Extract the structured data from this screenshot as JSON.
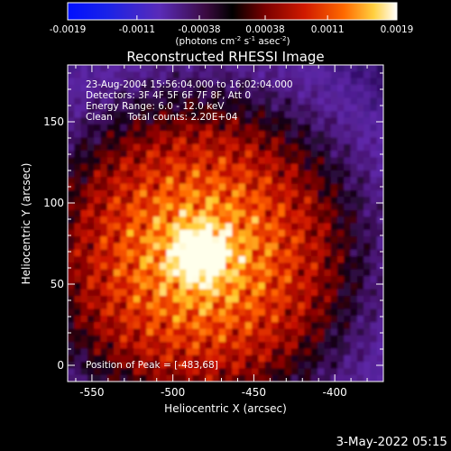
{
  "chart_data": {
    "type": "heatmap",
    "title": "Reconstructed RHESSI Image",
    "xlabel": "Heliocentric X (arcsec)",
    "ylabel": "Heliocentric Y (arcsec)",
    "xlim": [
      -565,
      -370
    ],
    "ylim": [
      -10,
      185
    ],
    "x_ticks": [
      -550,
      -500,
      -450,
      -400
    ],
    "y_ticks": [
      0,
      50,
      100,
      150
    ],
    "colorbar": {
      "ticks": [
        "-0.0019",
        "-0.0011",
        "-0.00038",
        "0.00038",
        "0.0011",
        "0.0019"
      ],
      "tick_values": [
        -0.0019,
        -0.0011,
        -0.00038,
        0.00038,
        0.0011,
        0.0019
      ],
      "range": [
        -0.0019,
        0.0019
      ],
      "unit_text": "(photons cm",
      "unit_sup1": "-2",
      "unit_mid": " s",
      "unit_sup2": "-1",
      "unit_mid2": " asec",
      "unit_sup3": "-2",
      "unit_end": ")"
    },
    "annotations": [
      "23-Aug-2004 15:56:04.000 to 16:02:04.000",
      "Detectors: 3F 4F 5F 6F 7F 8F, Att 0",
      "Energy Range: 6.0 - 12.0 keV",
      "Clean     Total counts: 2.20E+04"
    ],
    "peak_label": "Position of Peak = [-483,68]",
    "peak": {
      "x": -483,
      "y": 68
    },
    "grid": false
  },
  "footer": {
    "timestamp": "3-May-2022 05:15"
  }
}
